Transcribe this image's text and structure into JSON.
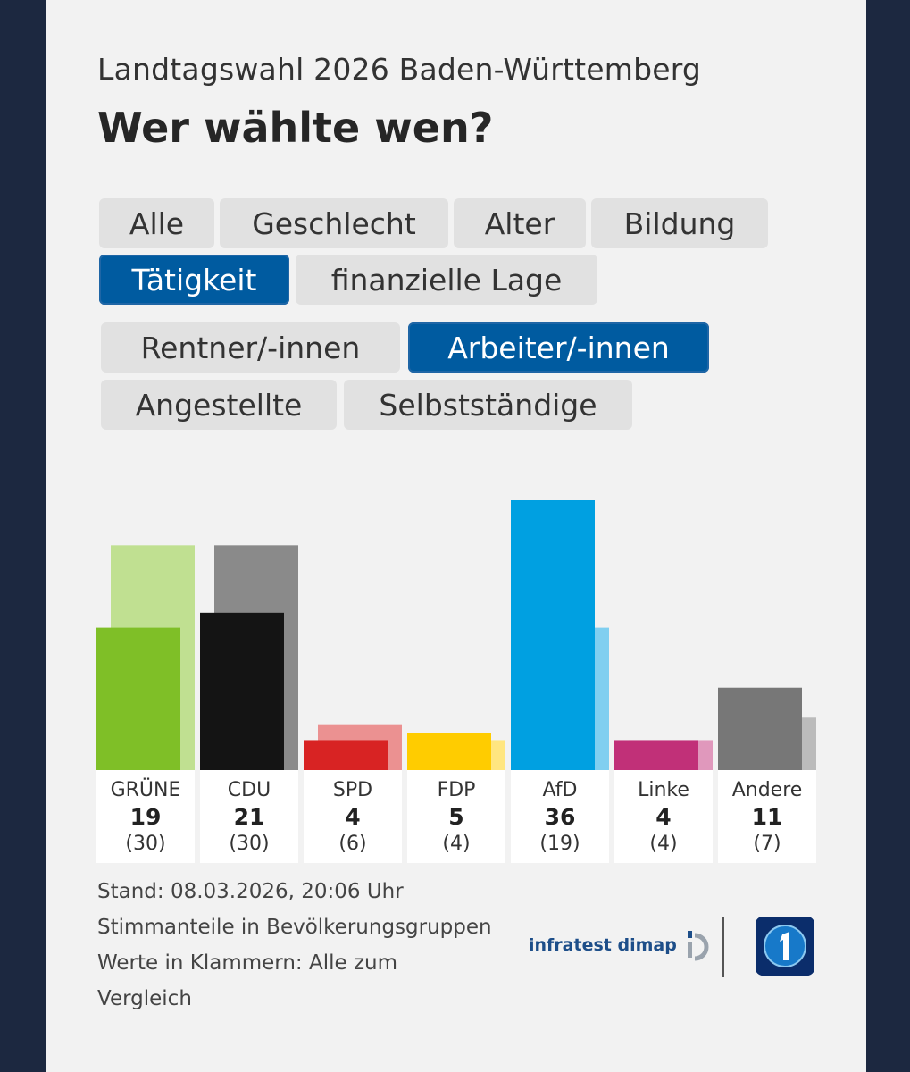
{
  "header": {
    "supertitle": "Landtagswahl 2026 Baden-Württemberg",
    "title": "Wer wählte wen?"
  },
  "filters": {
    "categories": [
      "Alle",
      "Geschlecht",
      "Alter",
      "Bildung",
      "Tätigkeit",
      "finanzielle Lage"
    ],
    "active_category": "Tätigkeit",
    "groups": [
      "Rentner/-innen",
      "Arbeiter/-innen",
      "Angestellte",
      "Selbstständige"
    ],
    "active_group": "Arbeiter/-innen"
  },
  "chart_data": {
    "type": "bar",
    "categories": [
      "GRÜNE",
      "CDU",
      "SPD",
      "FDP",
      "AfD",
      "Linke",
      "Andere"
    ],
    "series": [
      {
        "values": [
          19,
          21,
          4,
          5,
          36,
          4,
          11
        ]
      },
      {
        "values": [
          30,
          30,
          6,
          4,
          19,
          4,
          7
        ]
      }
    ],
    "value_labels": [
      "19",
      "21",
      "4",
      "5",
      "36",
      "4",
      "11"
    ],
    "comparison_labels": [
      "(30)",
      "(30)",
      "(6)",
      "(4)",
      "(19)",
      "(4)",
      "(7)"
    ],
    "colors": [
      "#7fbf27",
      "#141414",
      "#d82323",
      "#ffcc00",
      "#00a0e1",
      "#c13078",
      "#777777"
    ],
    "comparison_colors": [
      "#c0e091",
      "#8a8a8a",
      "#eb9191",
      "#ffe680",
      "#80cff0",
      "#e098bc",
      "#bbbbbb"
    ],
    "ylim": [
      0,
      36
    ]
  },
  "footer": {
    "stand": "Stand: 08.03.2026, 20:06 Uhr",
    "line2": "Stimmanteile in Bevölkerungsgruppen",
    "line3": "Werte in Klammern: Alle zum",
    "line4": "Vergleich",
    "infratest": "infratest dimap"
  }
}
